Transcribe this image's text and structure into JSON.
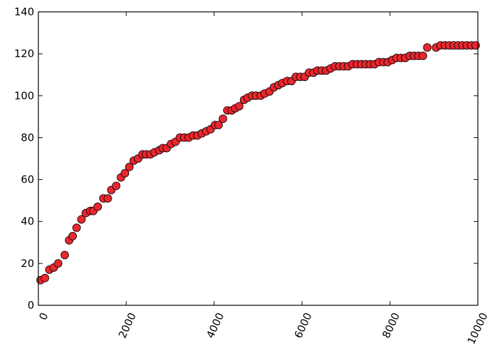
{
  "chart_data": {
    "type": "scatter",
    "title": "",
    "xlabel": "",
    "ylabel": "",
    "xlim": [
      0,
      10000
    ],
    "ylim": [
      0,
      140
    ],
    "xticks": [
      "0",
      "2000",
      "4000",
      "6000",
      "8000",
      "10000"
    ],
    "yticks": [
      "0",
      "20",
      "40",
      "60",
      "80",
      "100",
      "120",
      "140"
    ],
    "grid": false,
    "marker_color": "#e8272f",
    "marker_edge": "#000000",
    "series": [
      {
        "x": [
          50,
          150,
          250,
          350,
          450,
          600,
          700,
          780,
          870,
          980,
          1080,
          1180,
          1250,
          1350,
          1480,
          1580,
          1660,
          1770,
          1880,
          1970,
          2070,
          2170,
          2270,
          2370,
          2450,
          2550,
          2640,
          2750,
          2830,
          2920,
          3020,
          3120,
          3220,
          3320,
          3420,
          3520,
          3620,
          3720,
          3820,
          3920,
          4020,
          4100,
          4200,
          4300,
          4400,
          4480,
          4570,
          4680,
          4760,
          4860,
          4950,
          5060,
          5150,
          5260,
          5360,
          5460,
          5550,
          5660,
          5760,
          5860,
          5960,
          6060,
          6160,
          6260,
          6350,
          6450,
          6550,
          6650,
          6750,
          6850,
          6950,
          7050,
          7150,
          7250,
          7350,
          7450,
          7550,
          7650,
          7750,
          7850,
          7950,
          8050,
          8150,
          8250,
          8350,
          8450,
          8550,
          8650,
          8750,
          8850,
          9050,
          9150,
          9250,
          9350,
          9450,
          9550,
          9650,
          9750,
          9850,
          9950
        ],
        "y": [
          12,
          13,
          17,
          18,
          20,
          24,
          31,
          33,
          37,
          41,
          44,
          45,
          45,
          47,
          51,
          51,
          55,
          57,
          61,
          63,
          66,
          69,
          70,
          72,
          72,
          72,
          73,
          74,
          75,
          75,
          77,
          78,
          80,
          80,
          80,
          81,
          81,
          82,
          83,
          84,
          86,
          86,
          89,
          93,
          93,
          94,
          95,
          98,
          99,
          100,
          100,
          100,
          101,
          102,
          104,
          105,
          106,
          107,
          107,
          109,
          109,
          109,
          111,
          111,
          112,
          112,
          112,
          113,
          114,
          114,
          114,
          114,
          115,
          115,
          115,
          115,
          115,
          115,
          116,
          116,
          116,
          117,
          118,
          118,
          118,
          119,
          119,
          119,
          119,
          123,
          123,
          124,
          124,
          124,
          124,
          124,
          124,
          124,
          124,
          124
        ]
      }
    ]
  }
}
